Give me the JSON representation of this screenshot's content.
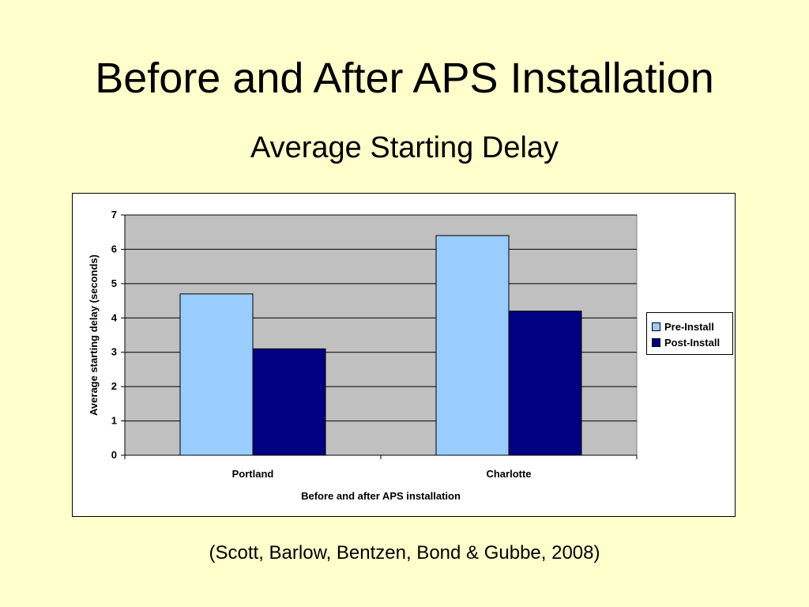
{
  "slide": {
    "title": "Before and After APS Installation",
    "subtitle": "Average Starting Delay",
    "citation": "(Scott, Barlow, Bentzen, Bond & Gubbe, 2008)"
  },
  "chart_data": {
    "type": "bar",
    "title": "",
    "xlabel": "Before and after APS installation",
    "ylabel": "Average starting delay (seconds)",
    "categories": [
      "Portland",
      "Charlotte"
    ],
    "series": [
      {
        "name": "Pre-Install",
        "values": [
          4.7,
          6.4
        ],
        "color": "#99CCFF"
      },
      {
        "name": "Post-Install",
        "values": [
          3.1,
          4.2
        ],
        "color": "#000080"
      }
    ],
    "ylim": [
      0,
      7
    ],
    "yticks": [
      "0",
      "1",
      "2",
      "3",
      "4",
      "5",
      "6",
      "7"
    ],
    "grid": true,
    "plot_background": "#C0C0C0",
    "legend_position": "right"
  }
}
